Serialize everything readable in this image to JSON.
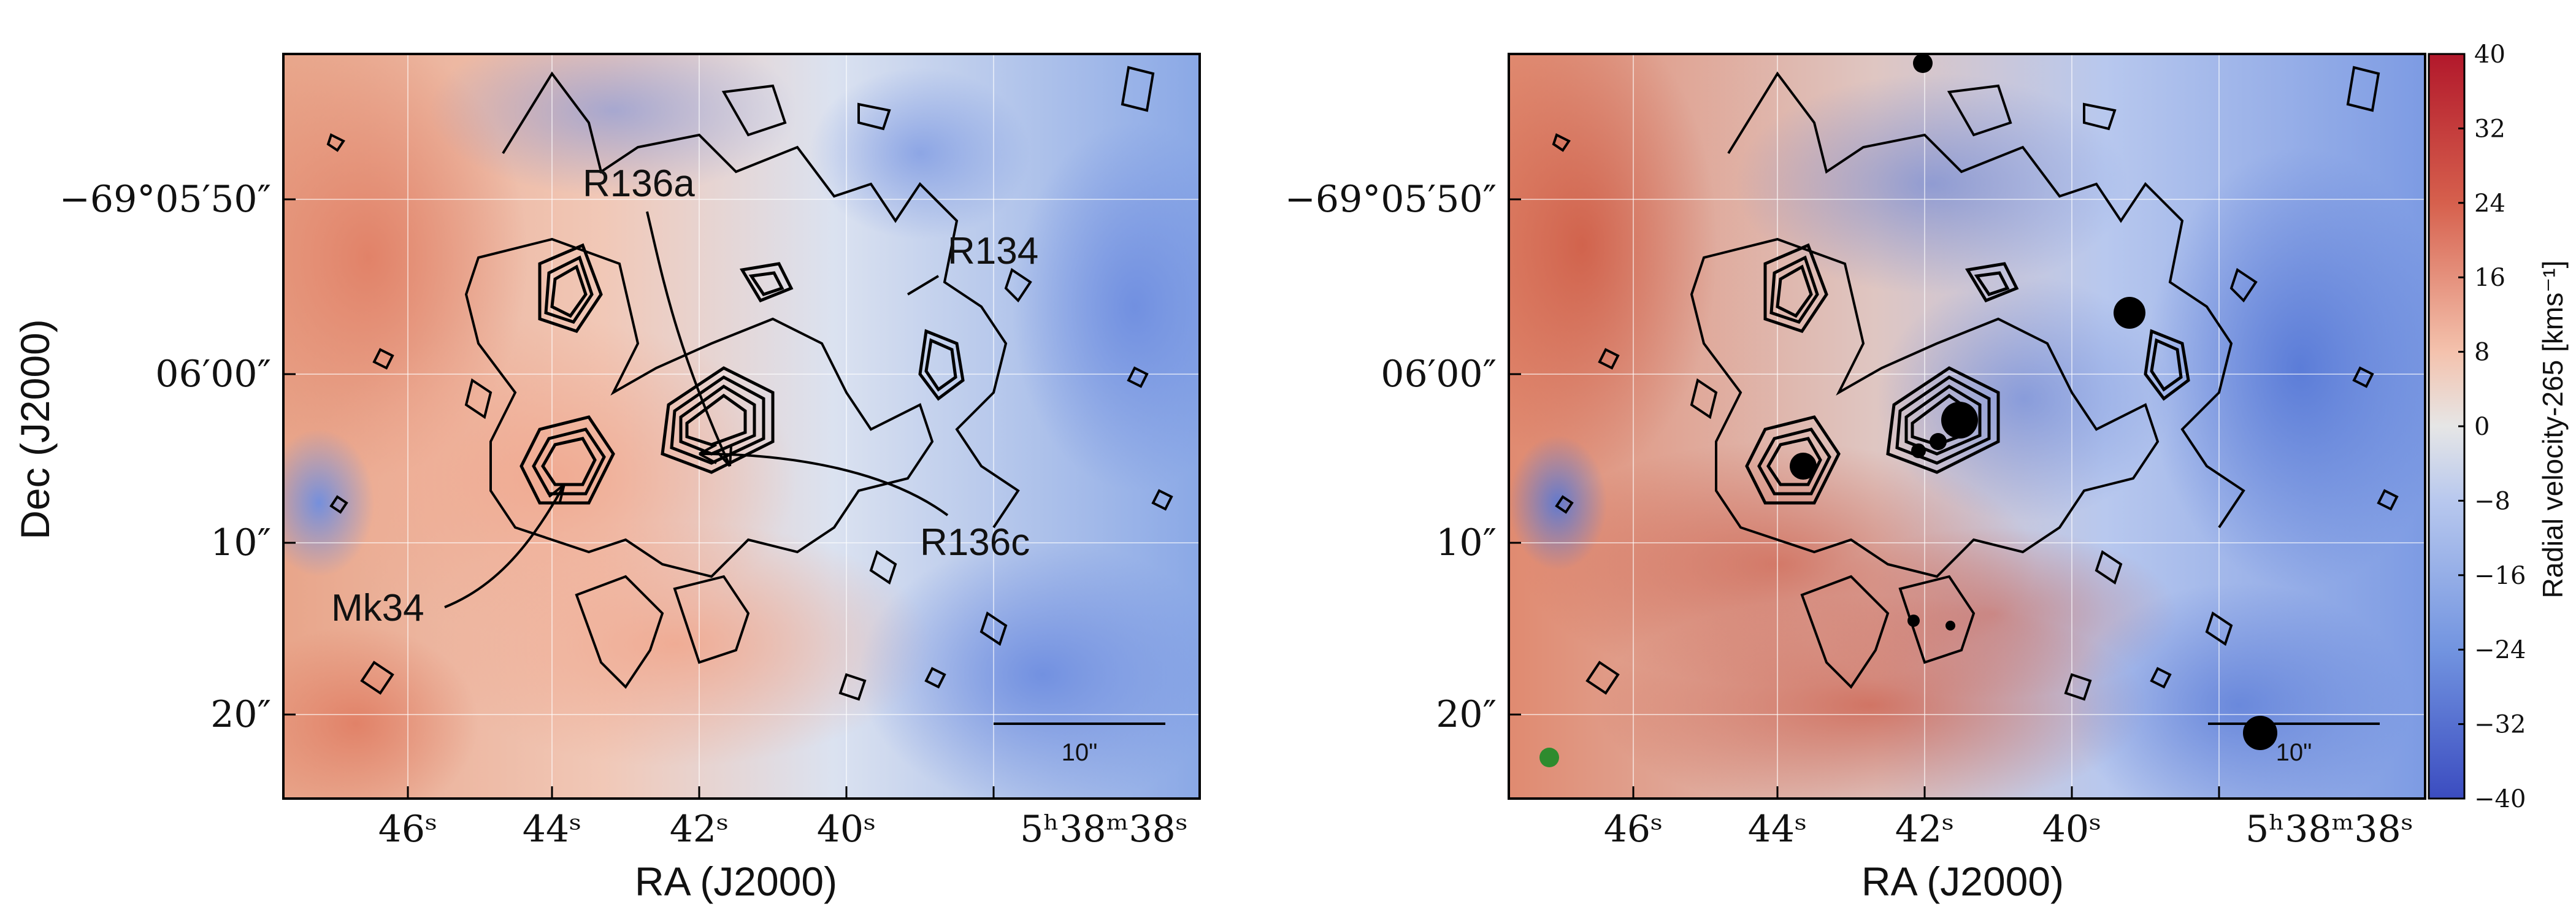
{
  "panels": [
    {
      "name": "left",
      "x_axis_title": "RA (J2000)",
      "y_axis_title": "Dec (J2000)",
      "x_ticks": [
        "46",
        "44",
        "42",
        "40",
        "5",
        "38",
        "38"
      ],
      "x_tick_labels": [
        "46ˢ",
        "44ˢ",
        "42ˢ",
        "40ˢ",
        "5ʰ38ᵐ38ˢ"
      ],
      "y_tick_labels": [
        "−69°05′50″",
        "06′00″",
        "10″",
        "20″"
      ],
      "annotations": [
        "R136a",
        "R134",
        "Mk34",
        "R136c"
      ],
      "scalebar_label": "10\""
    },
    {
      "name": "right",
      "x_axis_title": "RA (J2000)",
      "x_tick_labels": [
        "46ˢ",
        "44ˢ",
        "42ˢ",
        "40ˢ",
        "5ʰ38ᵐ38ˢ"
      ],
      "y_tick_labels": [
        "−69°05′50″",
        "06′00″",
        "10″",
        "20″"
      ],
      "scalebar_label": "10\""
    }
  ],
  "colorbar": {
    "title": "Radial velocity-265 [kms⁻¹]",
    "ticks": [
      "40",
      "32",
      "24",
      "16",
      "8",
      "0",
      "−8",
      "−16",
      "−24",
      "−32",
      "−40"
    ],
    "min": -40,
    "max": 40
  },
  "colors": {
    "red": "#b2182b",
    "blue": "#3b5fc0",
    "neutral": "#dcdcdc",
    "contour": "#000000",
    "marker": "#2e8b2e"
  }
}
